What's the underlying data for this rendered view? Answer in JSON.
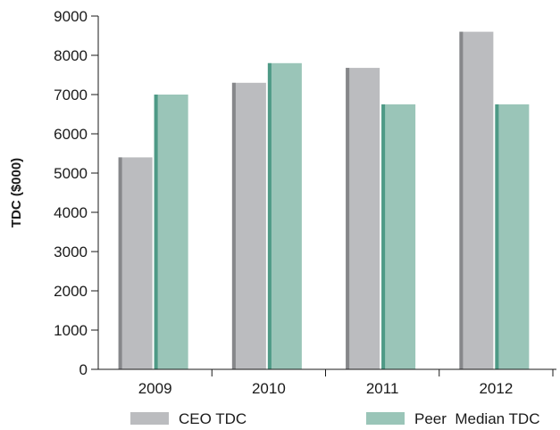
{
  "chart_data": {
    "type": "bar",
    "title": "",
    "xlabel": "",
    "ylabel": "TDC ($000)",
    "categories": [
      "2009",
      "2010",
      "2011",
      "2012"
    ],
    "series": [
      {
        "name": "CEO TDC",
        "values": [
          5400,
          7300,
          7680,
          8600
        ]
      },
      {
        "name": "Peer  Median TDC",
        "values": [
          7000,
          7800,
          6750,
          6750
        ]
      }
    ],
    "ylim": [
      0,
      9000
    ],
    "yticks": [
      "0",
      "1000",
      "2000",
      "3000",
      "4000",
      "5000",
      "6000",
      "7000",
      "8000",
      "9000"
    ],
    "grid": false,
    "legend": "bottom",
    "colors": {
      "CEO TDC": {
        "face": "#bbbcbf",
        "edge": "#86878a"
      },
      "Peer  Median TDC": {
        "face": "#9ac5b8",
        "edge": "#4e9a86"
      },
      "axis": "#1a1a1a"
    }
  }
}
